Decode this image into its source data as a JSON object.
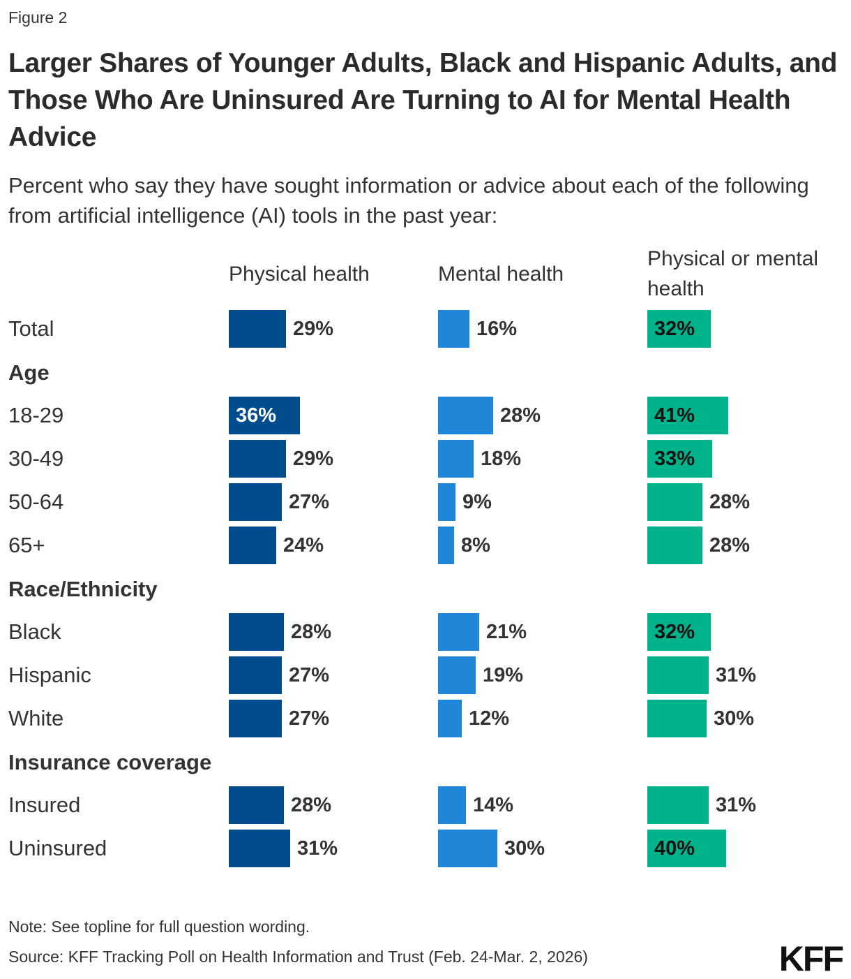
{
  "figure_label": "Figure 2",
  "title": "Larger Shares of Younger Adults, Black and Hispanic Adults, and Those Who Are Uninsured Are Turning to AI for Mental Health Advice",
  "subtitle": "Percent who say they have sought information or advice about each of the following from artificial intelligence (AI) tools in the past year:",
  "note": "Note: See topline for full question wording.",
  "source": "Source: KFF Tracking Poll on Health Information and Trust (Feb. 24-Mar. 2, 2026)",
  "logo": "KFF",
  "colors": {
    "physical": "#004c8c",
    "mental": "#1f86d8",
    "either": "#00b38a"
  },
  "chart_data": {
    "type": "bar",
    "orientation": "horizontal",
    "value_unit": "%",
    "series": [
      {
        "name": "Physical health",
        "values": [
          29,
          36,
          29,
          27,
          24,
          28,
          27,
          27,
          28,
          31
        ]
      },
      {
        "name": "Mental health",
        "values": [
          16,
          28,
          18,
          9,
          8,
          21,
          19,
          12,
          14,
          30
        ]
      },
      {
        "name": "Physical or mental health",
        "values": [
          32,
          41,
          33,
          28,
          28,
          32,
          31,
          30,
          31,
          40
        ]
      }
    ],
    "rows": [
      {
        "label": "Total",
        "group": ""
      },
      {
        "label": "18-29",
        "group": "Age"
      },
      {
        "label": "30-49",
        "group": "Age"
      },
      {
        "label": "50-64",
        "group": "Age"
      },
      {
        "label": "65+",
        "group": "Age"
      },
      {
        "label": "Black",
        "group": "Race/Ethnicity"
      },
      {
        "label": "Hispanic",
        "group": "Race/Ethnicity"
      },
      {
        "label": "White",
        "group": "Race/Ethnicity"
      },
      {
        "label": "Insured",
        "group": "Insurance coverage"
      },
      {
        "label": "Uninsured",
        "group": "Insurance coverage"
      }
    ],
    "groups": [
      "Age",
      "Race/Ethnicity",
      "Insurance coverage"
    ],
    "inside_labels": {
      "Physical health": [
        36
      ],
      "Physical or mental health": [
        32,
        41,
        33,
        32,
        40
      ]
    }
  }
}
